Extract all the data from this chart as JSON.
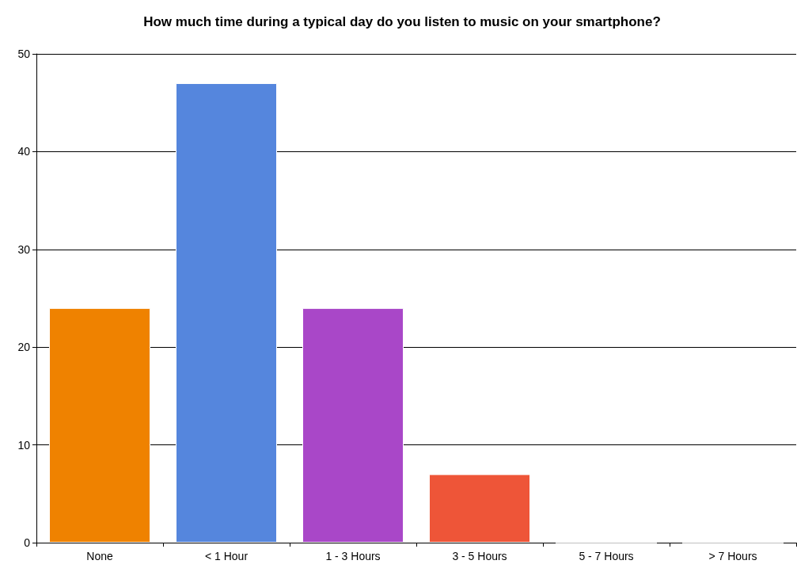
{
  "chart_data": {
    "type": "bar",
    "title": "How much time during a typical day do you listen to music on your smartphone?",
    "categories": [
      "None",
      "< 1 Hour",
      "1 - 3 Hours",
      "3 - 5 Hours",
      "5 - 7 Hours",
      "> 7 Hours"
    ],
    "values": [
      24,
      47,
      24,
      7,
      0,
      0
    ],
    "colors": [
      "#ef8200",
      "#5586dd",
      "#a947c8",
      "#ee5538",
      "#888888",
      "#888888"
    ],
    "ylim": [
      0,
      50
    ],
    "yticks": [
      0,
      10,
      20,
      30,
      40,
      50
    ],
    "grid": "y"
  }
}
